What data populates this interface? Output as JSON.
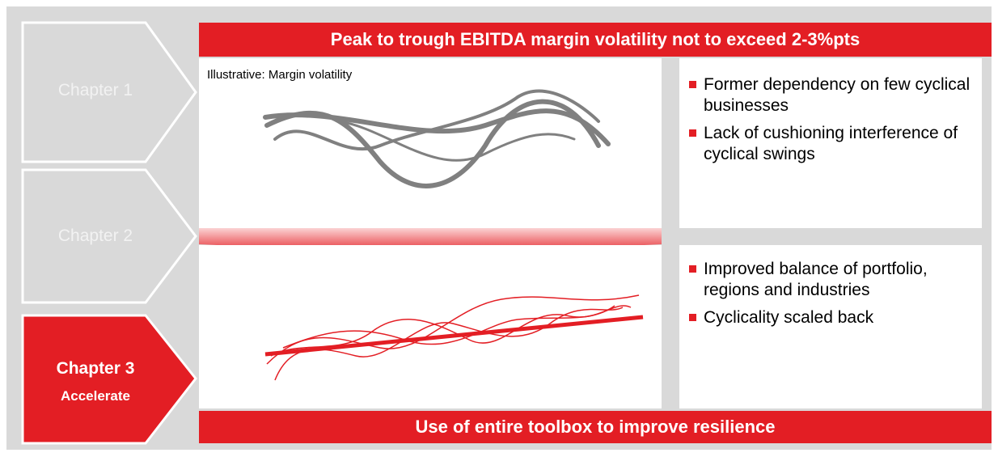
{
  "chapters": [
    {
      "label": "Chapter 1"
    },
    {
      "label": "Chapter 2"
    },
    {
      "label": "Chapter 3",
      "subtitle": "Accelerate"
    }
  ],
  "top_banner": "Peak to trough EBITDA margin volatility not to exceed 2-3%pts",
  "illustration_label": "Illustrative: Margin volatility",
  "before": {
    "bullets": [
      "Former dependency on few cyclical businesses",
      "Lack of cushioning interference of cyclical swings"
    ]
  },
  "after": {
    "bullets": [
      "Improved balance of portfolio, regions and industries",
      "Cyclicality scaled back"
    ]
  },
  "bottom_banner": "Use of entire toolbox to improve resilience"
}
